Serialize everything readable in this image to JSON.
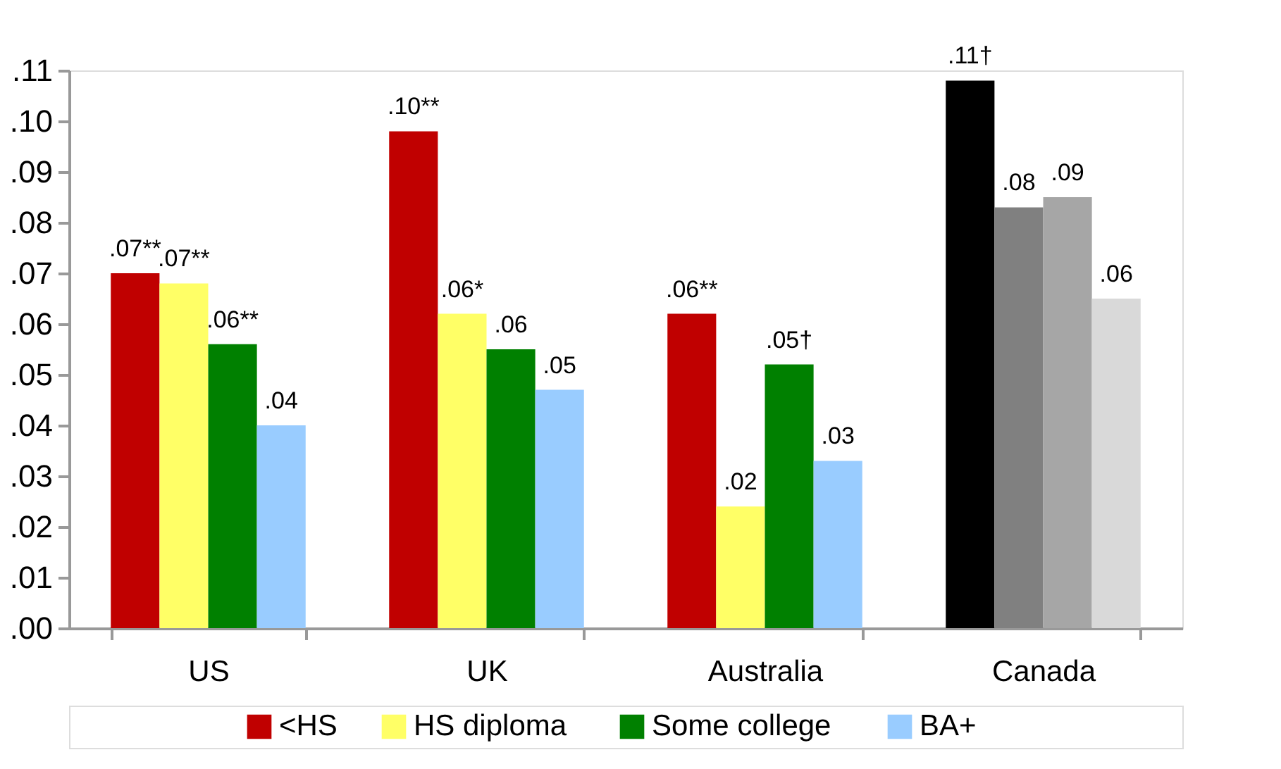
{
  "chart_data": {
    "type": "bar",
    "categories": [
      "US",
      "UK",
      "Australia",
      "Canada"
    ],
    "series": [
      {
        "name": "<HS",
        "color": "#c00000",
        "colors": [
          "#c00000",
          "#c00000",
          "#c00000",
          "#000000"
        ],
        "values": [
          0.07,
          0.098,
          0.062,
          0.108
        ],
        "value_labels": [
          ".07**",
          ".10**",
          ".06**",
          ".11†"
        ]
      },
      {
        "name": "HS diploma",
        "color": "#ffff66",
        "colors": [
          "#ffff66",
          "#ffff66",
          "#ffff66",
          "#808080"
        ],
        "values": [
          0.068,
          0.062,
          0.024,
          0.083
        ],
        "value_labels": [
          ".07**",
          ".06*",
          ".02",
          ".08"
        ]
      },
      {
        "name": "Some college",
        "color": "#008000",
        "colors": [
          "#008000",
          "#008000",
          "#008000",
          "#a6a6a6"
        ],
        "values": [
          0.056,
          0.055,
          0.052,
          0.085
        ],
        "value_labels": [
          ".06**",
          ".06",
          ".05†",
          ".09"
        ]
      },
      {
        "name": "BA+",
        "color": "#99ccff",
        "colors": [
          "#99ccff",
          "#99ccff",
          "#99ccff",
          "#d9d9d9"
        ],
        "values": [
          0.04,
          0.047,
          0.033,
          0.065
        ],
        "value_labels": [
          ".04",
          ".05",
          ".03",
          ".06"
        ]
      }
    ],
    "ylim": [
      0,
      0.11
    ],
    "yticks": [
      {
        "value": 0,
        "label": ".00"
      },
      {
        "value": 0.01,
        "label": ".01"
      },
      {
        "value": 0.02,
        "label": ".02"
      },
      {
        "value": 0.03,
        "label": ".03"
      },
      {
        "value": 0.04,
        "label": ".04"
      },
      {
        "value": 0.05,
        "label": ".05"
      },
      {
        "value": 0.06,
        "label": ".06"
      },
      {
        "value": 0.07,
        "label": ".07"
      },
      {
        "value": 0.08,
        "label": ".08"
      },
      {
        "value": 0.09,
        "label": ".09"
      },
      {
        "value": 0.1,
        "label": ".10"
      },
      {
        "value": 0.11,
        "label": ".11"
      }
    ],
    "grid": false,
    "legend": "bottom"
  }
}
